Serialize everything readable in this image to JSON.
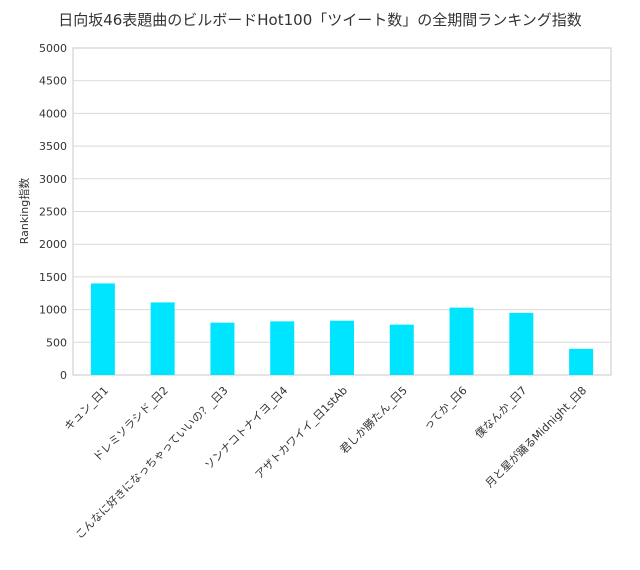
{
  "chart_data": {
    "type": "bar",
    "title": "日向坂46表題曲のビルボードHot100「ツイート数」の全期間ランキング指数",
    "xlabel": "",
    "ylabel": "Ranking指数",
    "ylim": [
      0,
      5000
    ],
    "yticks": [
      0,
      500,
      1000,
      1500,
      2000,
      2500,
      3000,
      3500,
      4000,
      4500,
      5000
    ],
    "grid": true,
    "legend": "none",
    "bar_color": "#00E5FF",
    "categories": [
      "キュン_日1",
      "ドレミソラシド_日2",
      "こんなに好きになっちゃっていいの？_日3",
      "ソンナコトナイヨ_日4",
      "アザトカワイイ_日1stAb",
      "君しか勝たん_日5",
      "ってか_日6",
      "僕なんか_日7",
      "月と星が踊るMidnight_日8"
    ],
    "values": [
      1400,
      1110,
      800,
      820,
      830,
      770,
      1030,
      950,
      400
    ]
  }
}
